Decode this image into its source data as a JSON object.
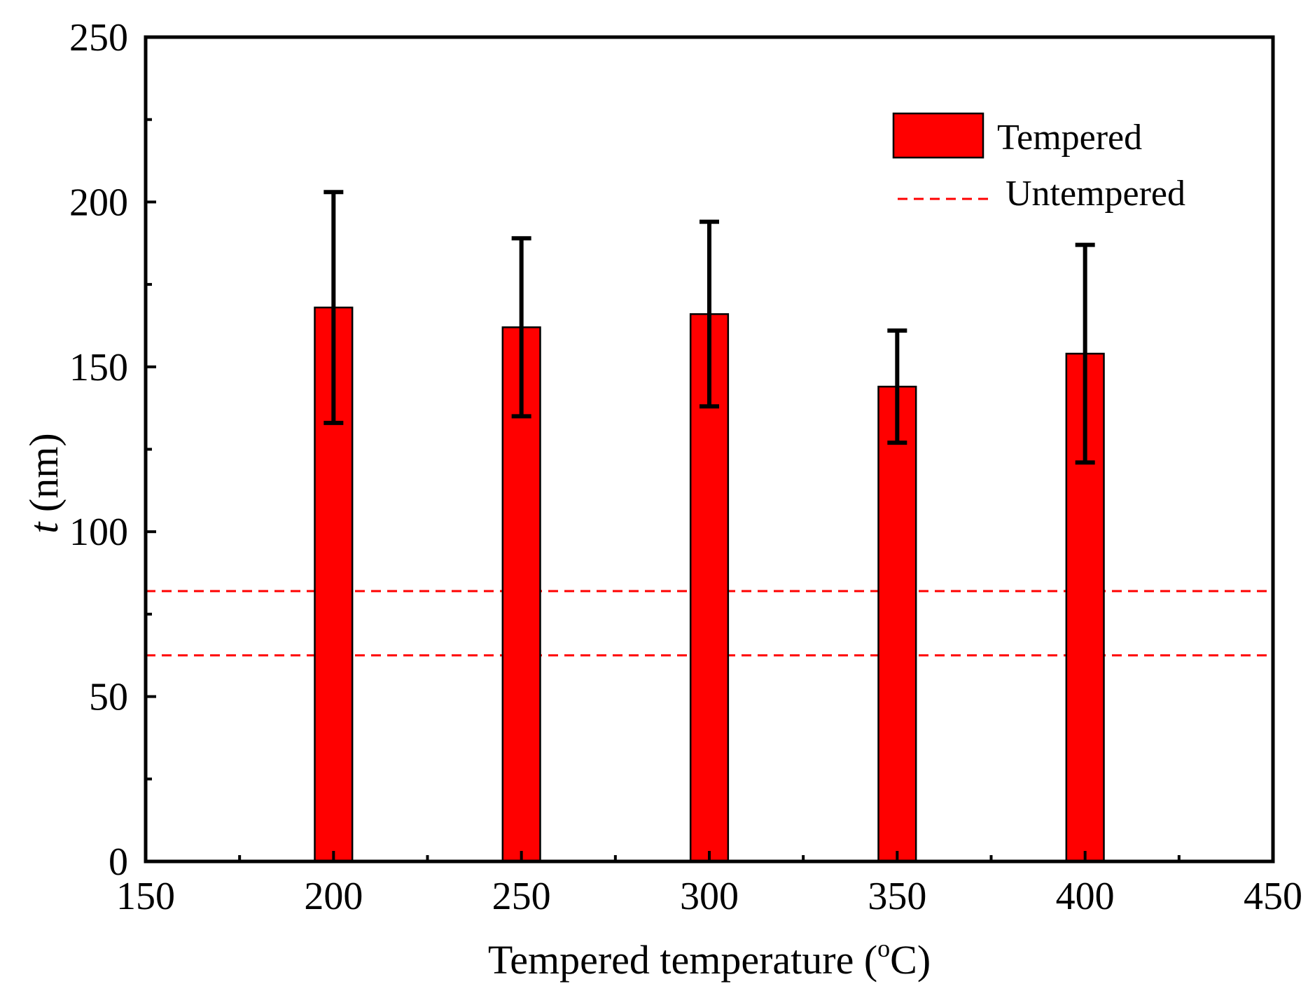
{
  "chart_data": {
    "type": "bar",
    "title": "",
    "xlabel": "Tempered temperature (",
    "xlabel_sup": "o",
    "xlabel_unit": "C)",
    "ylabel_var": "t",
    "ylabel_unit": " (nm)",
    "xlim": [
      150,
      450
    ],
    "ylim": [
      0,
      250
    ],
    "x_ticks": [
      150,
      200,
      250,
      300,
      350,
      400,
      450
    ],
    "y_ticks": [
      0,
      50,
      100,
      150,
      200,
      250
    ],
    "x_tick_labels": [
      "150",
      "200",
      "250",
      "300",
      "350",
      "400",
      "450"
    ],
    "y_tick_labels": [
      "0",
      "50",
      "100",
      "150",
      "200",
      "250"
    ],
    "x_minor_ticks": [
      175,
      225,
      275,
      325,
      375,
      425
    ],
    "y_minor_ticks": [
      25,
      75,
      125,
      175,
      225
    ],
    "series": [
      {
        "name": "Tempered",
        "x": [
          200,
          250,
          300,
          350,
          400
        ],
        "values": [
          168,
          162,
          166,
          144,
          154
        ],
        "error_low": [
          133,
          135,
          138,
          127,
          121
        ],
        "error_high": [
          203,
          189,
          194,
          161,
          187
        ],
        "bar_width": 10,
        "color": "#ff0000"
      }
    ],
    "reference_lines": {
      "name": "Untempered",
      "style": "dashed",
      "color": "#ff0000",
      "values": [
        82,
        62.5
      ]
    },
    "legend": {
      "position": "top-right",
      "entries": [
        "Tempered",
        "Untempered"
      ]
    },
    "grid": false
  }
}
